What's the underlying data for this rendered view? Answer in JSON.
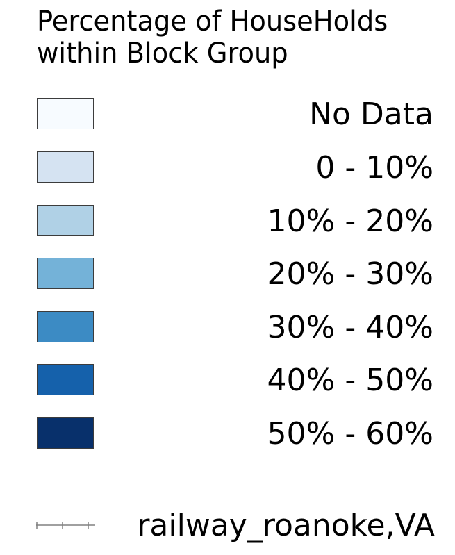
{
  "legend": {
    "title_line1": "Percentage of HouseHolds",
    "title_line2": "within Block Group",
    "classes": [
      {
        "label": "No Data",
        "color": "#f7fbff"
      },
      {
        "label": "0 - 10%",
        "color": "#d5e3f2"
      },
      {
        "label": "10% - 20%",
        "color": "#b0d1e6"
      },
      {
        "label": "20% - 30%",
        "color": "#74b2d8"
      },
      {
        "label": "30% - 40%",
        "color": "#3c8bc4"
      },
      {
        "label": "40% - 50%",
        "color": "#1561ab"
      },
      {
        "label": "50% - 60%",
        "color": "#08306b"
      }
    ],
    "railway": {
      "label": "railway_roanoke,VA",
      "icon": "railway-line-icon",
      "color": "#808080"
    }
  }
}
